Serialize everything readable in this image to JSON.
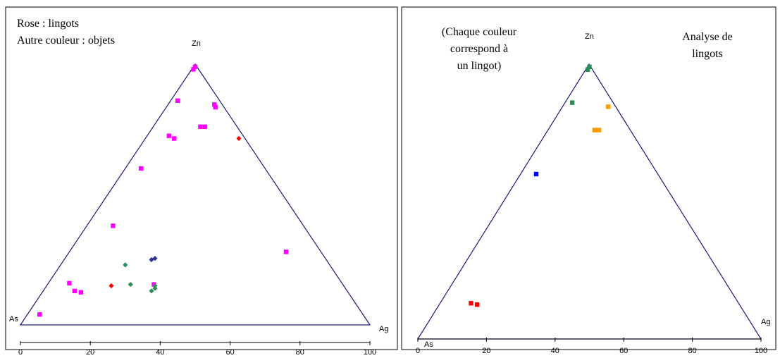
{
  "chart_data": [
    {
      "type": "scatter",
      "subtype": "ternary",
      "vertices": {
        "top": "Zn",
        "left": "As",
        "right": "Ag"
      },
      "annotations": [
        "Rose : lingots",
        "Autre couleur : objets"
      ],
      "ticks": [
        "0",
        "20",
        "40",
        "60",
        "80",
        "100"
      ],
      "xlim": [
        0,
        100
      ],
      "series": [
        {
          "color": "#ff00ff",
          "marker": "square",
          "points": [
            {
              "x": 50,
              "y": 99
            },
            {
              "x": 49.5,
              "y": 98
            },
            {
              "x": 45,
              "y": 86
            },
            {
              "x": 55.5,
              "y": 84.5
            },
            {
              "x": 55.8,
              "y": 83.5
            },
            {
              "x": 51.5,
              "y": 76
            },
            {
              "x": 52.8,
              "y": 76
            },
            {
              "x": 42.5,
              "y": 72.5
            },
            {
              "x": 44,
              "y": 71.5
            },
            {
              "x": 34.5,
              "y": 60
            },
            {
              "x": 26.5,
              "y": 38
            },
            {
              "x": 76,
              "y": 28
            },
            {
              "x": 14,
              "y": 16
            },
            {
              "x": 15.5,
              "y": 13
            },
            {
              "x": 17.3,
              "y": 12.5
            },
            {
              "x": 38.2,
              "y": 15.5
            },
            {
              "x": 5.5,
              "y": 4
            }
          ]
        },
        {
          "color": "#ff0000",
          "marker": "diamond",
          "points": [
            {
              "x": 62.5,
              "y": 71.5
            },
            {
              "x": 26,
              "y": 15
            }
          ]
        },
        {
          "color": "#2e8b57",
          "marker": "diamond",
          "points": [
            {
              "x": 30,
              "y": 23
            },
            {
              "x": 31.5,
              "y": 15.5
            },
            {
              "x": 37.5,
              "y": 13
            },
            {
              "x": 38.5,
              "y": 14
            },
            {
              "x": 38.5,
              "y": 15
            }
          ]
        },
        {
          "color": "#333399",
          "marker": "diamond",
          "points": [
            {
              "x": 37.5,
              "y": 25
            },
            {
              "x": 38.5,
              "y": 25.5
            }
          ]
        }
      ]
    },
    {
      "type": "scatter",
      "subtype": "ternary",
      "vertices": {
        "top": "Zn",
        "left": "As",
        "right": "Ag"
      },
      "annotations": [
        "(Chaque couleur",
        "correspond à",
        "un lingot)",
        "Analyse de",
        "lingots"
      ],
      "ticks": [
        "0",
        "20",
        "40",
        "60",
        "80",
        "100"
      ],
      "xlim": [
        0,
        100
      ],
      "series": [
        {
          "color": "#2e8b57",
          "marker": "square",
          "points": [
            {
              "x": 50,
              "y": 99
            },
            {
              "x": 49.5,
              "y": 98
            },
            {
              "x": 45,
              "y": 86
            }
          ]
        },
        {
          "color": "#ff9900",
          "marker": "square",
          "points": [
            {
              "x": 55.5,
              "y": 84.5
            },
            {
              "x": 51.5,
              "y": 76
            },
            {
              "x": 52.8,
              "y": 76
            }
          ]
        },
        {
          "color": "#0000ff",
          "marker": "square",
          "points": [
            {
              "x": 34.5,
              "y": 60
            }
          ]
        },
        {
          "color": "#ff0000",
          "marker": "square",
          "points": [
            {
              "x": 15.5,
              "y": 13
            },
            {
              "x": 17.3,
              "y": 12.5
            }
          ]
        }
      ]
    }
  ]
}
